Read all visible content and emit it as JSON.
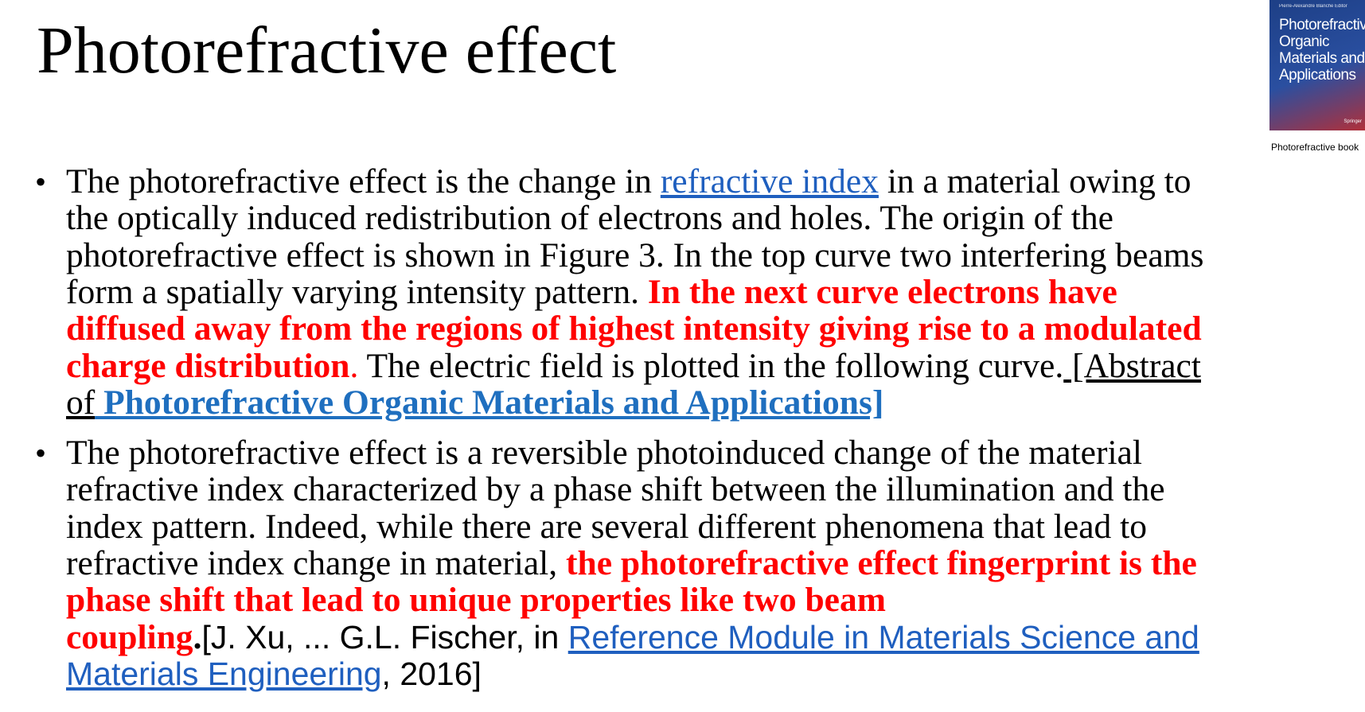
{
  "slide": {
    "title": "Photorefractive effect",
    "book": {
      "editor": "Pierre-Alexandre Blanche Editor",
      "title_lines": [
        "Photorefractive",
        "Organic",
        "Materials and",
        "Applications"
      ],
      "publisher": "Springer",
      "caption": "Photorefractive book"
    },
    "bullets": [
      {
        "lines": [
          [
            {
              "text": "The photorefractive effect is the change in ",
              "style": "plain"
            },
            {
              "text": "refractive index",
              "style": "link"
            },
            {
              "text": " in a material owing to",
              "style": "plain"
            }
          ],
          [
            {
              "text": "the optically induced redistribution of electrons and holes. The origin of the",
              "style": "plain"
            }
          ],
          [
            {
              "text": "photorefractive effect is shown in Figure 3. In the top curve two interfering beams",
              "style": "plain"
            }
          ],
          [
            {
              "text": "form a spatially varying intensity pattern. ",
              "style": "plain"
            },
            {
              "text": "In the next curve electrons have",
              "style": "red"
            }
          ],
          [
            {
              "text": "diffused away from the regions of highest intensity giving rise to a modulated",
              "style": "red"
            }
          ],
          [
            {
              "text": "charge distribution",
              "style": "red"
            },
            {
              "text": ".",
              "style": "red-plain"
            },
            {
              "text": " The electric field is plotted in the following curve.",
              "style": "plain"
            },
            {
              "text": " [Abstract",
              "style": "underline"
            }
          ],
          [
            {
              "text": "of",
              "style": "underline"
            },
            {
              "text": " Photorefractive Organic Materials and Applications]",
              "style": "link-bold"
            }
          ]
        ]
      },
      {
        "lines": [
          [
            {
              "text": "The photorefractive effect is a reversible photoinduced change of the material",
              "style": "plain"
            }
          ],
          [
            {
              "text": "refractive index characterized by a phase shift between the illumination and the",
              "style": "plain"
            }
          ],
          [
            {
              "text": "index pattern. Indeed, while there are several different phenomena that lead to",
              "style": "plain"
            }
          ],
          [
            {
              "text": "refractive index change in material, ",
              "style": "plain"
            },
            {
              "text": "the photorefractive effect fingerprint is the",
              "style": "red"
            }
          ],
          [
            {
              "text": "phase shift that lead to unique properties like two beam",
              "style": "red"
            }
          ],
          [
            {
              "text": "coupling",
              "style": "red"
            },
            {
              "text": ".",
              "style": "plain-bold"
            },
            {
              "text": "[J. Xu, ... G.L. Fischer, in ",
              "style": "sans"
            },
            {
              "text": "Reference Module in Materials Science and",
              "style": "sans-link"
            }
          ],
          [
            {
              "text": "Materials Engineering",
              "style": "sans-link"
            },
            {
              "text": ", 2016]",
              "style": "sans"
            }
          ]
        ]
      }
    ]
  }
}
